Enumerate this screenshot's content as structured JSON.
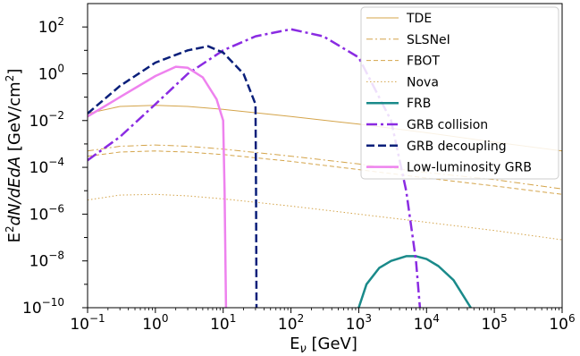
{
  "chart_data": {
    "type": "line",
    "xlabel": "$E_\\nu$ [GeV]",
    "ylabel": "$E^2 dN/dEdA$ [GeV/cm$^2$]",
    "xscale": "log",
    "yscale": "log",
    "xlim": [
      0.1,
      1000000
    ],
    "ylim": [
      1e-10,
      1000
    ],
    "x_ticks": [
      {
        "base": "10",
        "exp": "−1"
      },
      {
        "base": "10",
        "exp": "0"
      },
      {
        "base": "10",
        "exp": "1"
      },
      {
        "base": "10",
        "exp": "2"
      },
      {
        "base": "10",
        "exp": "3"
      },
      {
        "base": "10",
        "exp": "4"
      },
      {
        "base": "10",
        "exp": "5"
      },
      {
        "base": "10",
        "exp": "6"
      }
    ],
    "y_ticks": [
      {
        "base": "10",
        "exp": "−10"
      },
      {
        "base": "10",
        "exp": "−8"
      },
      {
        "base": "10",
        "exp": "−6"
      },
      {
        "base": "10",
        "exp": "−4"
      },
      {
        "base": "10",
        "exp": "−2"
      },
      {
        "base": "10",
        "exp": "0"
      },
      {
        "base": "10",
        "exp": "2"
      }
    ],
    "legend_position": "top-right",
    "grid": false,
    "series": [
      {
        "name": "TDE",
        "color": "#d4a44a",
        "style": "solid",
        "width": 1,
        "x": [
          0.1,
          0.3,
          1,
          3,
          10,
          100,
          1000,
          10000,
          100000,
          1000000
        ],
        "y": [
          0.02,
          0.04,
          0.045,
          0.04,
          0.03,
          0.015,
          0.007,
          0.003,
          0.0012,
          0.0005
        ]
      },
      {
        "name": "SLSNeI",
        "color": "#d4a44a",
        "style": "dashdot",
        "width": 1,
        "x": [
          0.1,
          0.3,
          1,
          3,
          10,
          100,
          1000,
          10000,
          100000,
          1000000
        ],
        "y": [
          0.0005,
          0.0008,
          0.0009,
          0.0008,
          0.0006,
          0.0003,
          0.00014,
          6e-05,
          3e-05,
          1.2e-05
        ]
      },
      {
        "name": "FBOT",
        "color": "#d4a44a",
        "style": "dashed",
        "width": 1,
        "x": [
          0.1,
          0.3,
          1,
          3,
          10,
          100,
          1000,
          10000,
          100000,
          1000000
        ],
        "y": [
          0.0003,
          0.00045,
          0.0005,
          0.00045,
          0.00035,
          0.00018,
          8e-05,
          3.5e-05,
          1.6e-05,
          7e-06
        ]
      },
      {
        "name": "Nova",
        "color": "#d4a44a",
        "style": "dotted",
        "width": 1,
        "x": [
          0.1,
          0.3,
          1,
          3,
          10,
          100,
          1000,
          10000,
          100000,
          1000000
        ],
        "y": [
          4e-06,
          6.5e-06,
          7e-06,
          6e-06,
          4.5e-06,
          2.2e-06,
          1e-06,
          4.5e-07,
          2e-07,
          8e-08
        ]
      },
      {
        "name": "FRB",
        "color": "#1a8a8a",
        "style": "solid",
        "width": 2.5,
        "x": [
          1000,
          1300,
          2000,
          3000,
          5000,
          7000,
          10000,
          15000,
          25000,
          45000
        ],
        "y": [
          1e-10,
          1e-09,
          5e-09,
          1e-08,
          1.6e-08,
          1.6e-08,
          1.2e-08,
          6e-09,
          1.5e-09,
          1e-10
        ]
      },
      {
        "name": "GRB collision",
        "color": "#8a2be2",
        "style": "dashdot",
        "width": 2.5,
        "x": [
          0.1,
          0.3,
          1,
          3,
          10,
          30,
          100,
          300,
          1000,
          3000,
          5000,
          7000,
          8000
        ],
        "y": [
          0.0002,
          0.002,
          0.05,
          1,
          10,
          40,
          80,
          40,
          5,
          0.01,
          1e-05,
          1e-08,
          1e-10
        ]
      },
      {
        "name": "GRB decoupling",
        "color": "#0a1f7a",
        "style": "dashed",
        "width": 2.5,
        "x": [
          0.1,
          0.3,
          1,
          3,
          6,
          10,
          20,
          30,
          30.5,
          31
        ],
        "y": [
          0.02,
          0.3,
          3,
          10,
          15,
          8,
          1,
          0.05,
          1e-05,
          1e-10
        ]
      },
      {
        "name": "Low-luminosity GRB",
        "color": "#ee82ee",
        "style": "solid",
        "width": 2.5,
        "x": [
          0.1,
          0.3,
          1,
          2,
          3,
          5,
          8,
          10,
          10.5,
          11
        ],
        "y": [
          0.015,
          0.1,
          0.8,
          2,
          1.8,
          0.7,
          0.08,
          0.01,
          1e-05,
          1e-10
        ]
      }
    ]
  }
}
